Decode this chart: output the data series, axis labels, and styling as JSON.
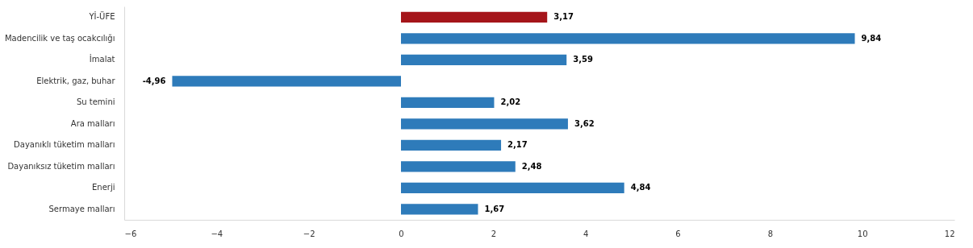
{
  "chart_data": {
    "type": "bar",
    "orientation": "horizontal",
    "categories": [
      "Yİ-ÜFE",
      "Madencilik ve taş ocakcılığı",
      "İmalat",
      "Elektrik, gaz, buhar",
      "Su temini",
      "Ara malları",
      "Dayanıklı tüketim malları",
      "Dayanıksız tüketim malları",
      "Enerji",
      "Sermaye malları"
    ],
    "values": [
      3.17,
      9.84,
      3.59,
      -4.96,
      2.02,
      3.62,
      2.17,
      2.48,
      4.84,
      1.67
    ],
    "colors": [
      "#a5151a",
      "#2e7bba",
      "#2e7bba",
      "#2e7bba",
      "#2e7bba",
      "#2e7bba",
      "#2e7bba",
      "#2e7bba",
      "#2e7bba",
      "#2e7bba"
    ],
    "value_labels": [
      "3,17",
      "9,84",
      "3,59",
      "-4,96",
      "2,02",
      "3,62",
      "2,17",
      "2,48",
      "4,84",
      "1,67"
    ],
    "xlim": [
      -6,
      12
    ],
    "xticks": [
      -6,
      -4,
      -2,
      0,
      2,
      4,
      6,
      8,
      10,
      12
    ],
    "grid": false
  }
}
